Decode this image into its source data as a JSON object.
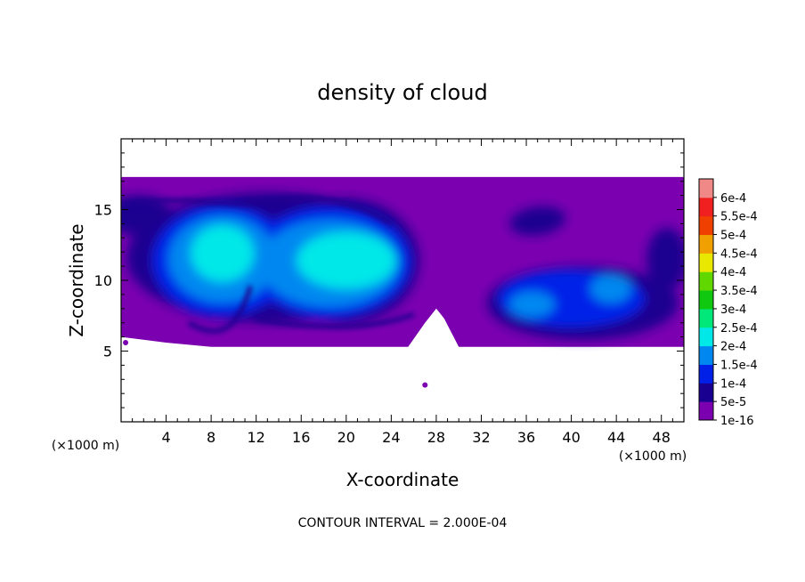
{
  "chart_data": {
    "type": "heatmap",
    "title": "density of cloud",
    "xlabel": "X-coordinate",
    "ylabel": "Z-coordinate",
    "x_unit": "(×1000 m)",
    "y_unit": "(×1000 m)",
    "xlim": [
      0,
      50
    ],
    "ylim": [
      0,
      20
    ],
    "x_ticks": [
      4,
      8,
      12,
      16,
      20,
      24,
      28,
      32,
      36,
      40,
      44,
      48
    ],
    "y_ticks": [
      5,
      10,
      15
    ],
    "footer": "CONTOUR INTERVAL = 2.000E-04",
    "colorbar": {
      "labels": [
        "1e-16",
        "5e-5",
        "1e-4",
        "1.5e-4",
        "2e-4",
        "2.5e-4",
        "3e-4",
        "3.5e-4",
        "4e-4",
        "4.5e-4",
        "5e-4",
        "5.5e-4",
        "6e-4"
      ],
      "colors": [
        "#7b00b0",
        "#1a0090",
        "#0020e8",
        "#0088f0",
        "#00e8e8",
        "#00e87a",
        "#10c810",
        "#60d800",
        "#e8e800",
        "#f0a000",
        "#f04000",
        "#f02020",
        "#f08888"
      ]
    },
    "cloud_layer": {
      "z_bottom": 5.3,
      "z_top": 17.3,
      "x_start": 0,
      "x_end": 50
    },
    "regions": [
      {
        "name": "left core",
        "x_center": 9,
        "z_center": 11.5,
        "level": "2e-4"
      },
      {
        "name": "central core",
        "x_center": 20,
        "z_center": 11,
        "level": "2e-4"
      },
      {
        "name": "right cells",
        "x_center": 40,
        "z_center": 8.5,
        "level": "1.5e-4"
      }
    ]
  }
}
